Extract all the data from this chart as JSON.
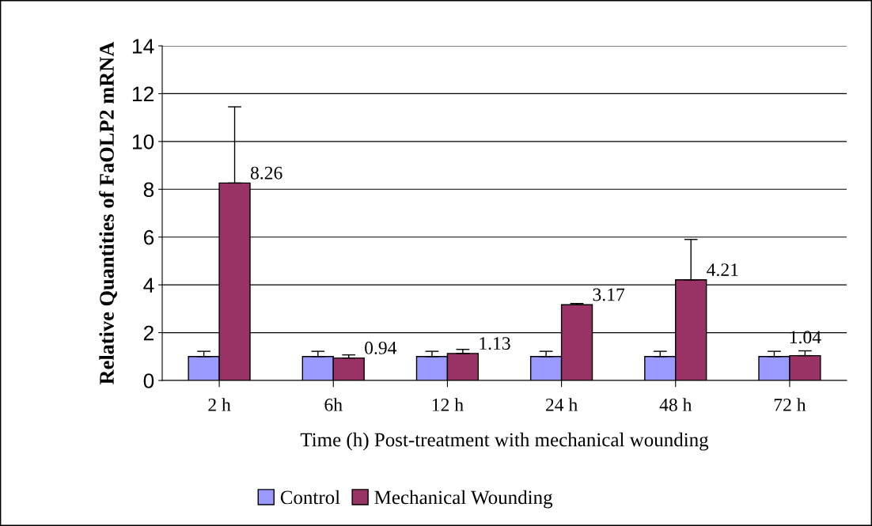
{
  "chart_data": {
    "type": "bar",
    "xlabel": "Time (h) Post-treatment with mechanical wounding",
    "ylabel": "Relative Quantities of FaOLP2 mRNA",
    "categories": [
      "2 h",
      "6h",
      "12 h",
      "24 h",
      "48 h",
      "72 h"
    ],
    "series": [
      {
        "name": "Control",
        "color": "#9999ff",
        "values": [
          1,
          1,
          1,
          1,
          1,
          1
        ],
        "errors": [
          [
            1,
            1.22
          ],
          [
            1,
            1.22
          ],
          [
            1,
            1.22
          ],
          [
            1,
            1.22
          ],
          [
            1,
            1.22
          ],
          [
            1,
            1.22
          ]
        ]
      },
      {
        "name": "Mechanical Wounding",
        "color": "#993366",
        "values": [
          8.26,
          0.94,
          1.13,
          3.17,
          4.21,
          1.04
        ],
        "errors": [
          [
            8.26,
            11.45
          ],
          [
            0.94,
            1.07
          ],
          [
            1.13,
            1.3
          ],
          [
            3.17,
            3.22
          ],
          [
            4.21,
            5.9
          ],
          [
            1.04,
            1.24
          ]
        ],
        "value_labels": [
          "8.26",
          "0.94",
          "1.13",
          "3.17",
          "4.21",
          "1.04"
        ]
      }
    ],
    "ylim": [
      0,
      14
    ],
    "yticks": [
      0,
      2,
      4,
      6,
      8,
      10,
      12,
      14
    ],
    "grid": "y",
    "legend": "bottom"
  }
}
